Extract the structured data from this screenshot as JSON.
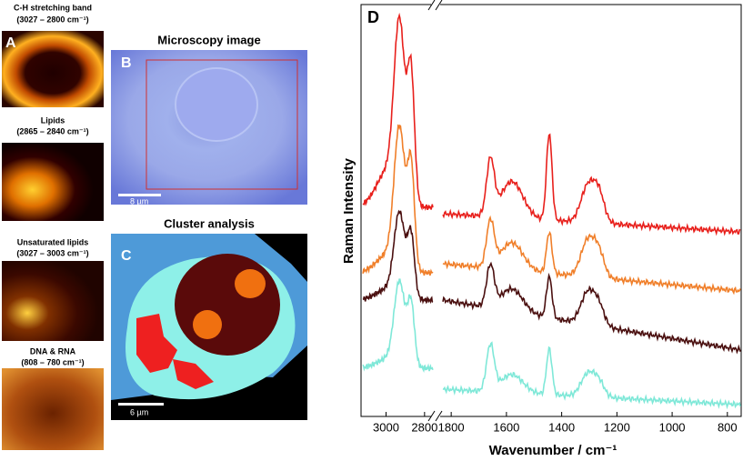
{
  "panel_a": {
    "letter": "A",
    "maps": [
      {
        "title": "C-H stretching band",
        "range": "(3027 – 2800 cm⁻¹)"
      },
      {
        "title": "Lipids",
        "range": "(2865 – 2840 cm⁻¹)"
      },
      {
        "title": "Unsaturated lipids",
        "range": "(3027 – 3003 cm⁻¹)"
      },
      {
        "title": "DNA & RNA",
        "range": "(808 – 780 cm⁻¹)"
      }
    ]
  },
  "panel_b": {
    "letter": "B",
    "title": "Microscopy image",
    "scale_bar": "8 µm"
  },
  "panel_c": {
    "letter": "C",
    "title": "Cluster analysis",
    "scale_bar": "6 µm"
  },
  "panel_d": {
    "letter": "D",
    "y_label": "Raman Intensity",
    "x_label": "Wavenumber / cm⁻¹",
    "xlim_left": [
      3130,
      2752
    ],
    "xticks_left": [
      3000,
      2800
    ],
    "xlim_right": [
      1840,
      750
    ],
    "xticks_right": [
      1800,
      1600,
      1400,
      1200,
      1000,
      800
    ],
    "colors": [
      "#e8201c",
      "#f07f2a",
      "#4a0f0f",
      "#7fe8d8"
    ]
  }
}
